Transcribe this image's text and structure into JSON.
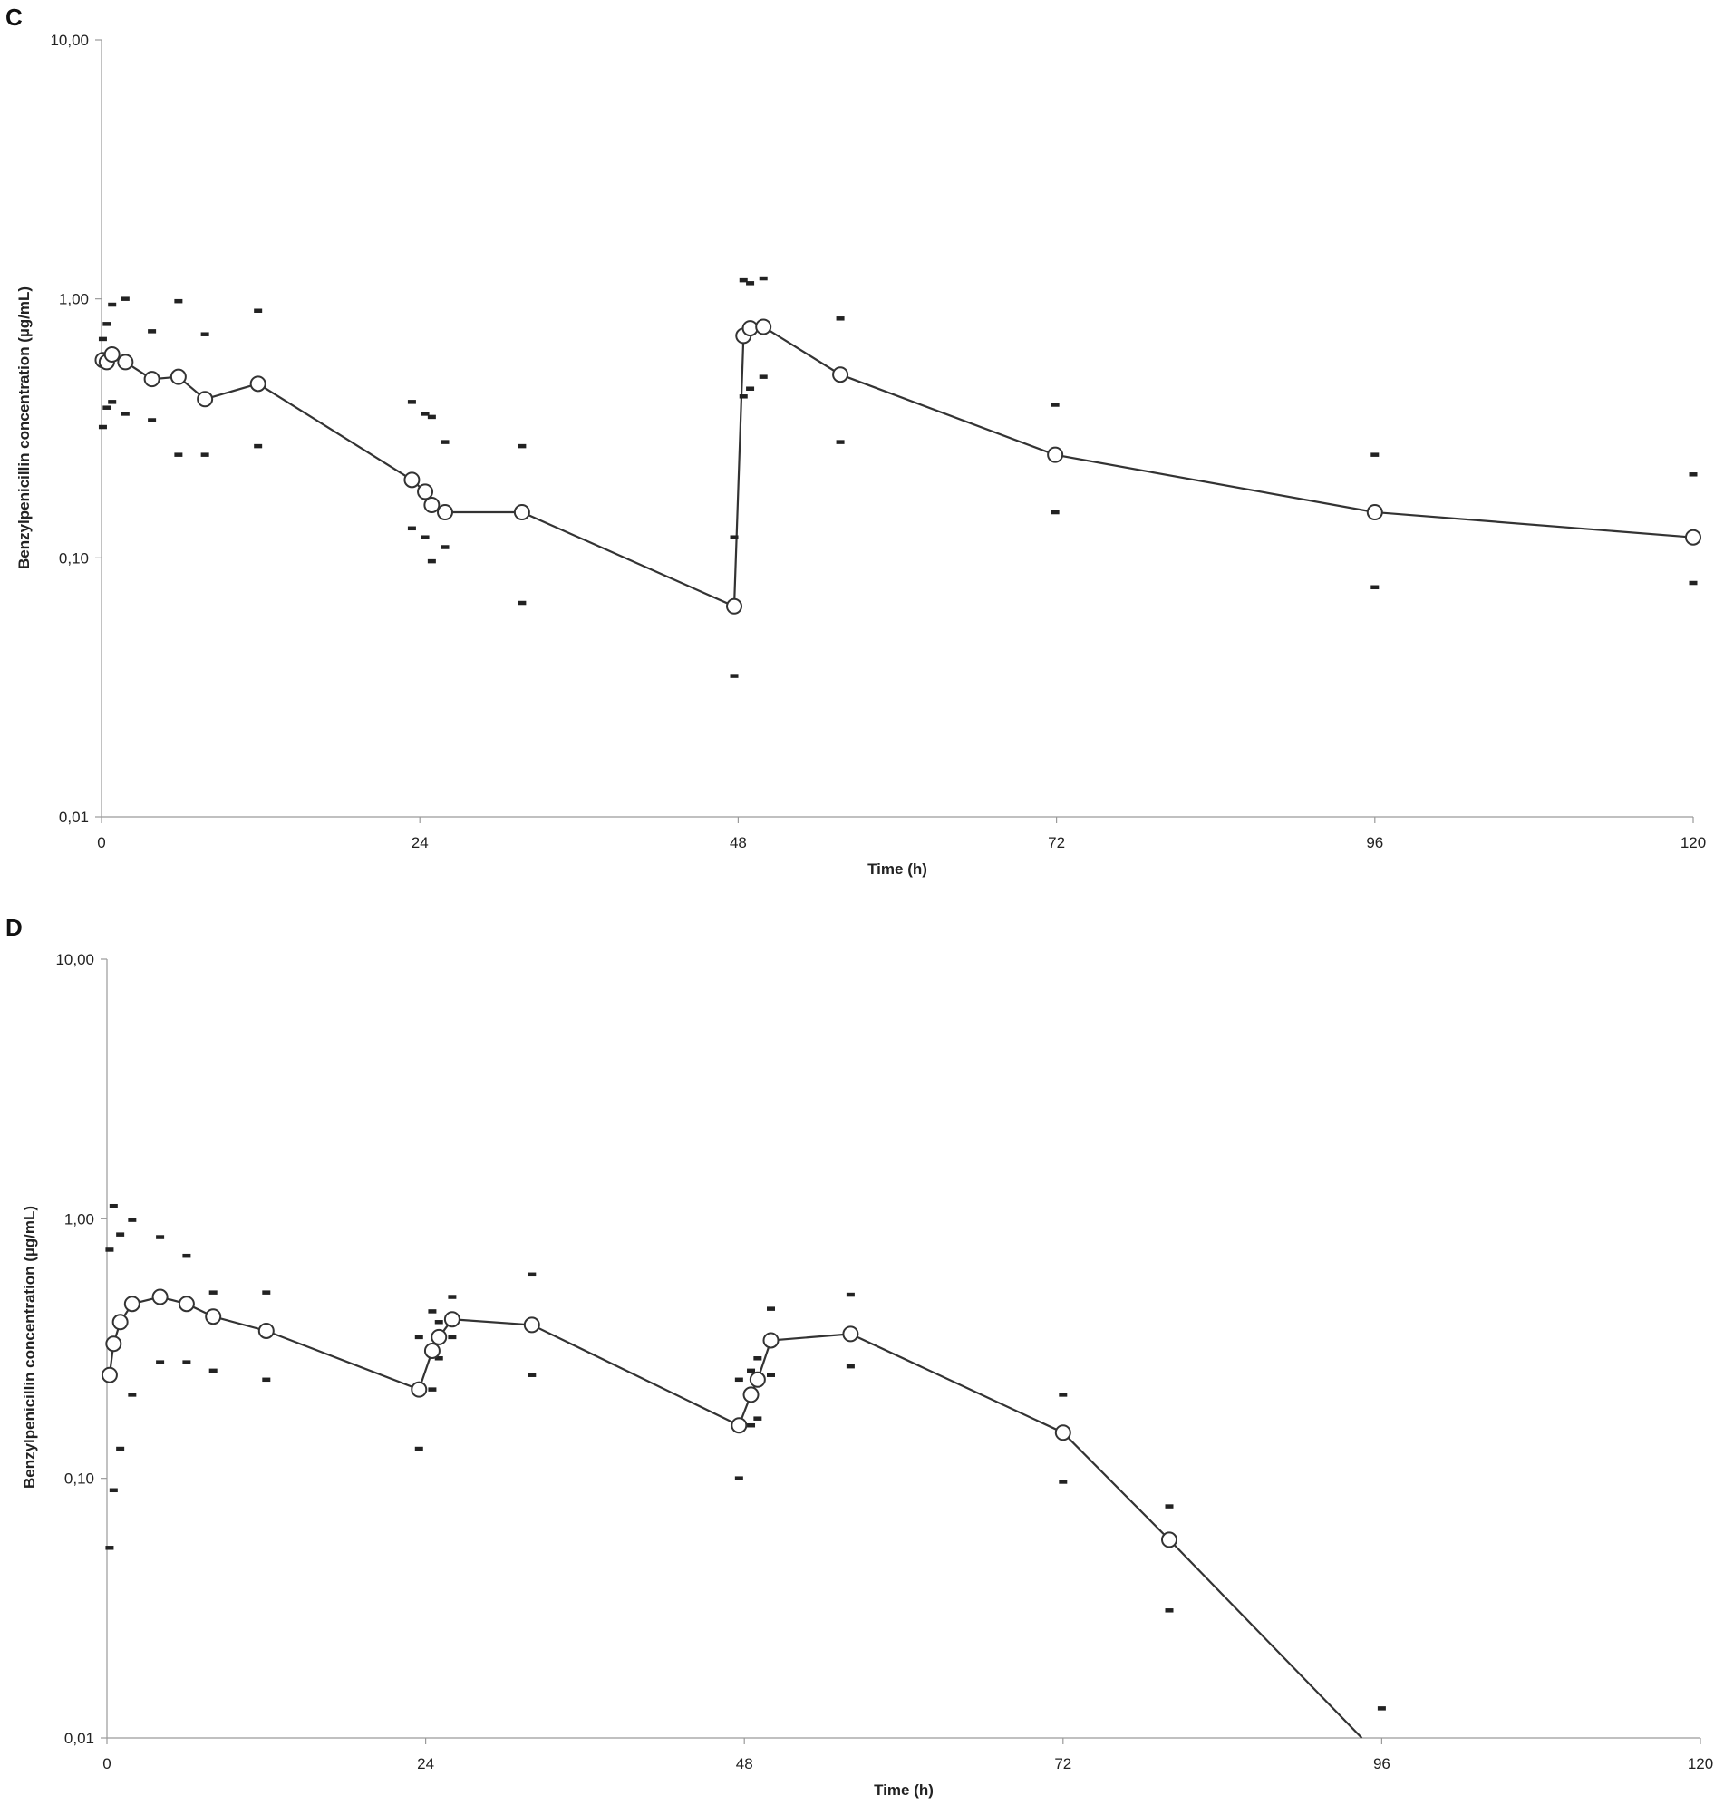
{
  "chart_data": [
    {
      "panel": "C",
      "type": "line",
      "xlabel": "Time (h)",
      "ylabel": "Benzylpenicillin concentration (µg/mL)",
      "xlim": [
        0,
        120
      ],
      "ylim": [
        0.01,
        10
      ],
      "yscale": "log",
      "xticks": [
        "0",
        "24",
        "48",
        "72",
        "96",
        "120"
      ],
      "yticks": [
        "0,01",
        "0,10",
        "1,00",
        "10,00"
      ],
      "grid": false,
      "series": [
        {
          "x": [
            0.1,
            0.4,
            0.8,
            1.8,
            3.8,
            5.8,
            7.8,
            11.8,
            23.4,
            24.4,
            24.9,
            25.9,
            31.7,
            47.7,
            48.4,
            48.9,
            49.9,
            55.7,
            71.9,
            96.0,
            120.0
          ],
          "y": [
            0.58,
            0.57,
            0.61,
            0.57,
            0.49,
            0.5,
            0.41,
            0.47,
            0.2,
            0.18,
            0.16,
            0.15,
            0.15,
            0.065,
            0.72,
            0.77,
            0.78,
            0.51,
            0.25,
            0.15,
            0.12
          ],
          "upper": [
            0.7,
            0.8,
            0.95,
            1.0,
            0.75,
            0.98,
            0.73,
            0.9,
            0.4,
            0.36,
            0.35,
            0.28,
            0.27,
            0.12,
            1.18,
            1.15,
            1.2,
            0.84,
            0.39,
            0.25,
            0.21
          ],
          "lower": [
            0.32,
            0.38,
            0.4,
            0.36,
            0.34,
            0.25,
            0.25,
            0.27,
            0.13,
            0.12,
            0.097,
            0.11,
            0.067,
            0.035,
            0.42,
            0.45,
            0.5,
            0.28,
            0.15,
            0.077,
            0.08
          ]
        }
      ]
    },
    {
      "panel": "D",
      "type": "line",
      "xlabel": "Time (h)",
      "ylabel": "Benzylpenicillin concentration (µg/mL)",
      "xlim": [
        0,
        120
      ],
      "ylim": [
        0.01,
        10
      ],
      "yscale": "log",
      "xticks": [
        "0",
        "24",
        "48",
        "72",
        "96",
        "120"
      ],
      "yticks": [
        "0,01",
        "0,10",
        "1,00",
        "10,00"
      ],
      "grid": false,
      "series": [
        {
          "x": [
            0.2,
            0.5,
            1.0,
            1.9,
            4.0,
            6.0,
            8.0,
            12.0,
            23.5,
            24.5,
            25.0,
            26.0,
            32.0,
            47.6,
            48.5,
            49.0,
            50.0,
            56.0,
            72.0,
            80.0,
            94.5
          ],
          "y": [
            0.25,
            0.33,
            0.4,
            0.47,
            0.5,
            0.47,
            0.42,
            0.37,
            0.22,
            0.31,
            0.35,
            0.41,
            0.39,
            0.16,
            0.21,
            0.24,
            0.34,
            0.36,
            0.15,
            0.058,
            0.01
          ],
          "upper": [
            0.76,
            1.12,
            0.87,
            0.99,
            0.85,
            0.72,
            0.52,
            0.52,
            0.35,
            0.44,
            0.4,
            0.5,
            0.61,
            0.24,
            0.26,
            0.29,
            0.45,
            0.51,
            0.21,
            0.078,
            null
          ],
          "lower": [
            0.054,
            0.09,
            0.13,
            0.21,
            0.28,
            0.28,
            0.26,
            0.24,
            0.13,
            0.22,
            0.29,
            0.35,
            0.25,
            0.1,
            0.16,
            0.17,
            0.25,
            0.27,
            0.097,
            0.031,
            null
          ]
        }
      ],
      "extra_marks": [
        {
          "x": 96.0,
          "y": 0.013
        }
      ]
    }
  ]
}
